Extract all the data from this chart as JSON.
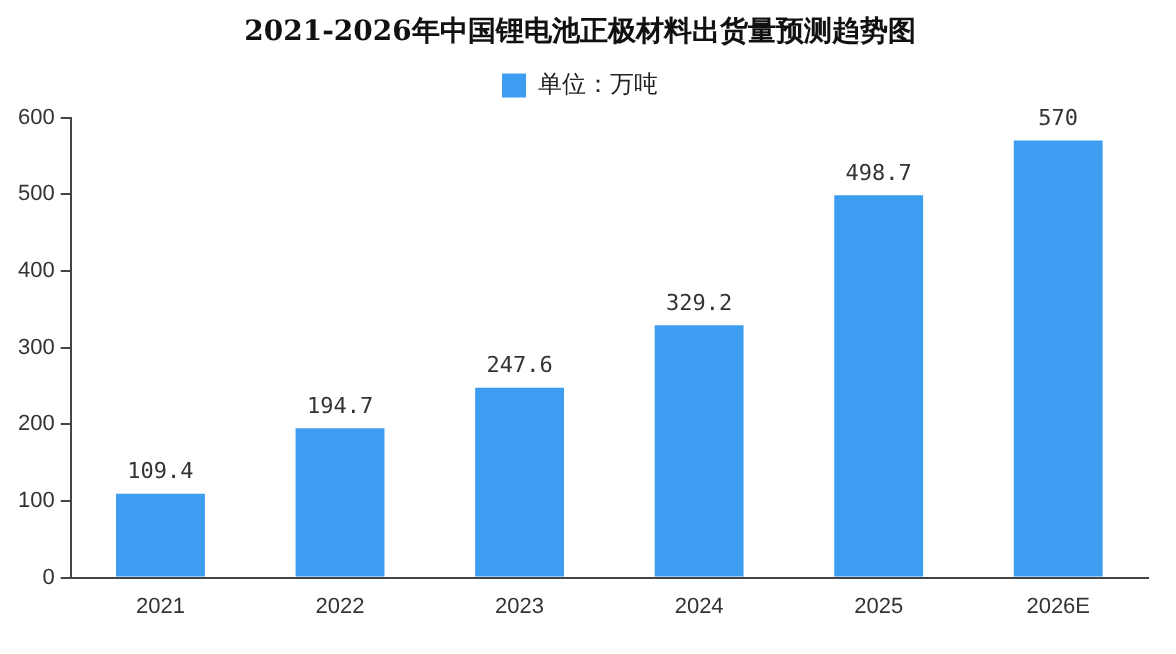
{
  "chart_data": {
    "type": "bar",
    "title": "2021-2026年中国锂电池正极材料出货量预测趋势图",
    "categories": [
      "2021",
      "2022",
      "2023",
      "2024",
      "2025",
      "2026E"
    ],
    "series": [
      {
        "name": "单位：万吨",
        "color": "#3d9df0",
        "values": [
          109.4,
          194.7,
          247.6,
          329.2,
          498.7,
          570
        ]
      }
    ],
    "ylim": [
      0,
      600
    ],
    "yticks": [
      0,
      100,
      200,
      300,
      400,
      500,
      600
    ],
    "grid": false,
    "legend": "top",
    "data_labels": true
  }
}
